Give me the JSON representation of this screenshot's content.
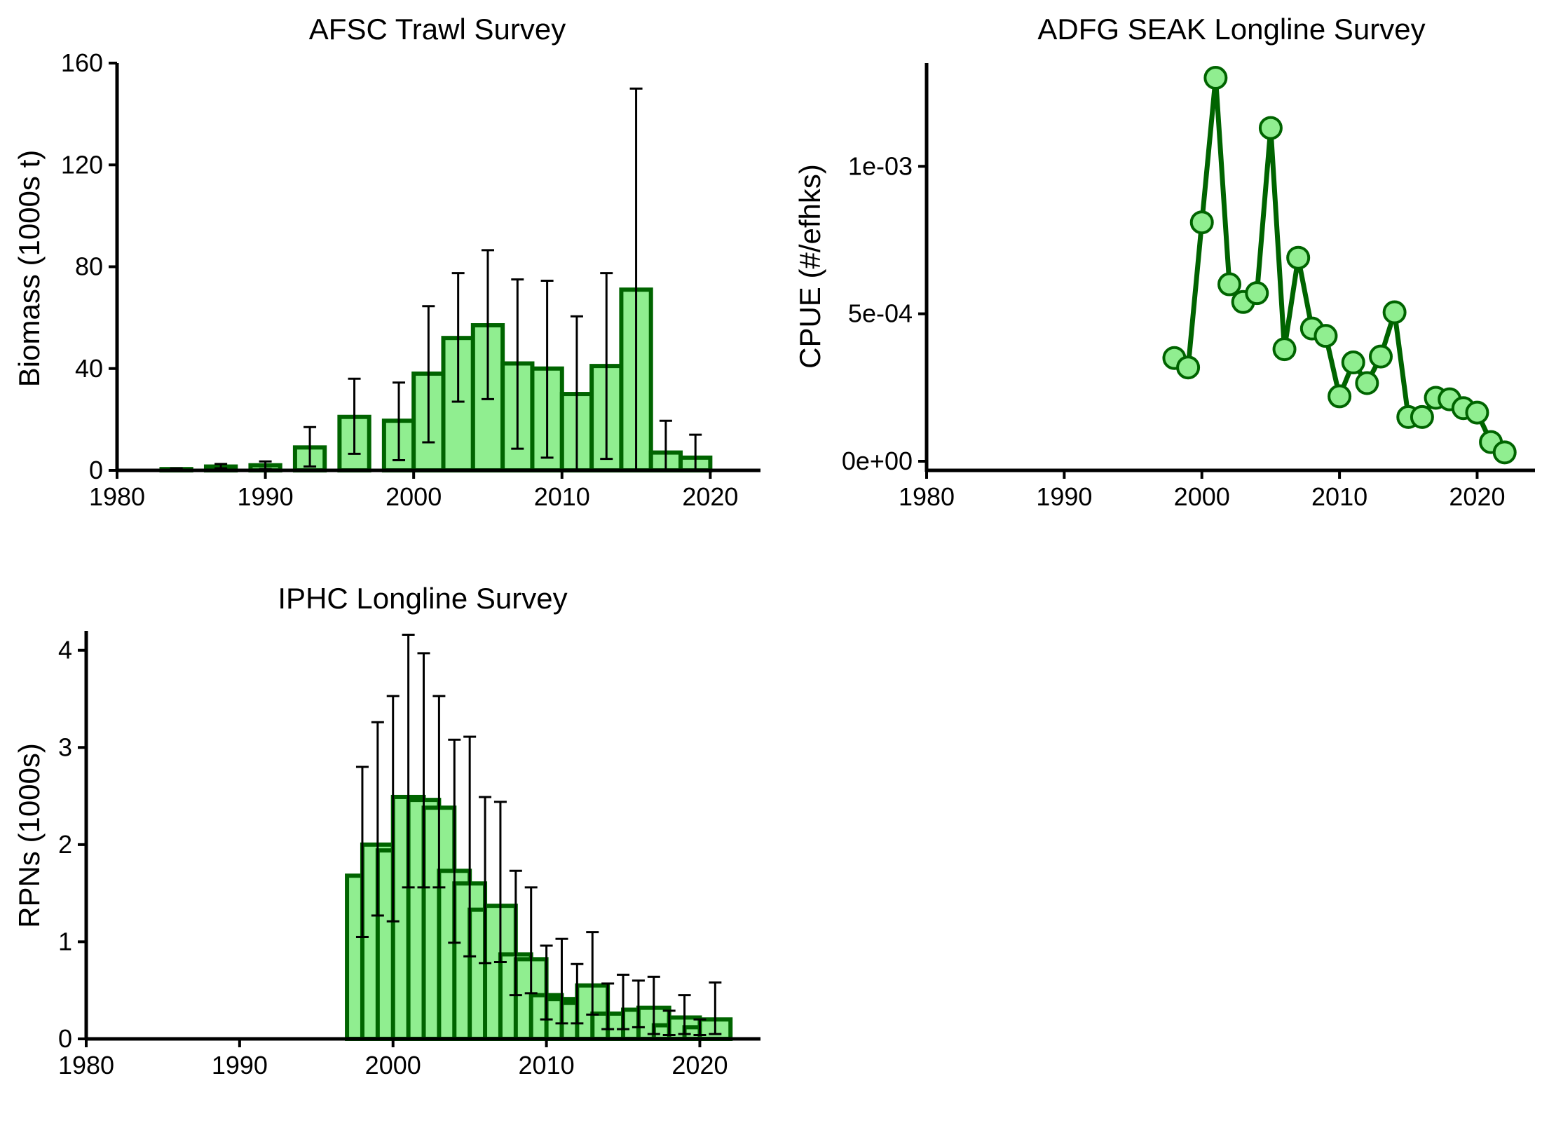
{
  "chart_data": [
    {
      "id": "afsc",
      "type": "bar",
      "title": "AFSC Trawl Survey",
      "xlabel": "",
      "ylabel": "Biomass (1000s t)",
      "xlim": [
        1980,
        2024
      ],
      "ylim": [
        0,
        160
      ],
      "x_ticks": [
        "1980",
        "1990",
        "2000",
        "2010",
        "2020"
      ],
      "y_ticks": [
        "0",
        "40",
        "80",
        "120",
        "160"
      ],
      "bar_width": 2,
      "points": [
        {
          "x": 1984,
          "y": 0.5,
          "lo": 0.2,
          "hi": 0.8
        },
        {
          "x": 1987,
          "y": 1.5,
          "lo": 0.8,
          "hi": 2.5
        },
        {
          "x": 1990,
          "y": 2.0,
          "lo": 0.5,
          "hi": 3.5
        },
        {
          "x": 1993,
          "y": 9.0,
          "lo": 1.5,
          "hi": 17.0
        },
        {
          "x": 1996,
          "y": 21.0,
          "lo": 6.5,
          "hi": 36.0
        },
        {
          "x": 1999,
          "y": 19.5,
          "lo": 4.0,
          "hi": 34.5
        },
        {
          "x": 2001,
          "y": 38.0,
          "lo": 11.0,
          "hi": 64.5
        },
        {
          "x": 2003,
          "y": 52.0,
          "lo": 27.0,
          "hi": 77.5
        },
        {
          "x": 2005,
          "y": 57.0,
          "lo": 28.0,
          "hi": 86.5
        },
        {
          "x": 2007,
          "y": 42.0,
          "lo": 8.5,
          "hi": 75.0
        },
        {
          "x": 2009,
          "y": 40.0,
          "lo": 5.0,
          "hi": 74.5
        },
        {
          "x": 2011,
          "y": 30.0,
          "lo": 0.0,
          "hi": 60.5
        },
        {
          "x": 2013,
          "y": 41.0,
          "lo": 4.5,
          "hi": 77.5
        },
        {
          "x": 2015,
          "y": 71.0,
          "lo": 0.0,
          "hi": 150.0
        },
        {
          "x": 2017,
          "y": 7.0,
          "lo": 0.0,
          "hi": 19.5
        },
        {
          "x": 2019,
          "y": 5.0,
          "lo": 0.0,
          "hi": 14.0
        }
      ]
    },
    {
      "id": "adfg",
      "type": "line",
      "title": "ADFG SEAK Longline Survey",
      "xlabel": "",
      "ylabel": "CPUE (#/efhks)",
      "xlim": [
        1980,
        2024
      ],
      "ylim": [
        0,
        0.00135
      ],
      "x_ticks": [
        "1980",
        "1990",
        "2000",
        "2010",
        "2020"
      ],
      "y_ticks": [
        {
          "value": 0,
          "label": "0e+00"
        },
        {
          "value": 0.0005,
          "label": "5e-04"
        },
        {
          "value": 0.001,
          "label": "1e-03"
        }
      ],
      "points": [
        {
          "x": 1998,
          "y": 0.00035
        },
        {
          "x": 1999,
          "y": 0.000318
        },
        {
          "x": 2000,
          "y": 0.00081
        },
        {
          "x": 2001,
          "y": 0.0013
        },
        {
          "x": 2002,
          "y": 0.0006
        },
        {
          "x": 2003,
          "y": 0.00054
        },
        {
          "x": 2004,
          "y": 0.00057
        },
        {
          "x": 2005,
          "y": 0.00113
        },
        {
          "x": 2006,
          "y": 0.00038
        },
        {
          "x": 2007,
          "y": 0.00069
        },
        {
          "x": 2008,
          "y": 0.00045
        },
        {
          "x": 2009,
          "y": 0.000425
        },
        {
          "x": 2010,
          "y": 0.00022
        },
        {
          "x": 2011,
          "y": 0.000335
        },
        {
          "x": 2012,
          "y": 0.000265
        },
        {
          "x": 2013,
          "y": 0.000355
        },
        {
          "x": 2014,
          "y": 0.000505
        },
        {
          "x": 2015,
          "y": 0.00015
        },
        {
          "x": 2016,
          "y": 0.00015
        },
        {
          "x": 2017,
          "y": 0.000215
        },
        {
          "x": 2018,
          "y": 0.00021
        },
        {
          "x": 2019,
          "y": 0.00018
        },
        {
          "x": 2020,
          "y": 0.000165
        },
        {
          "x": 2021,
          "y": 6.5e-05
        },
        {
          "x": 2022,
          "y": 3e-05
        }
      ]
    },
    {
      "id": "iphc",
      "type": "bar",
      "title": "IPHC Longline Survey",
      "xlabel": "",
      "ylabel": "RPNs (1000s)",
      "xlim": [
        1980,
        2024
      ],
      "ylim": [
        0,
        4.2
      ],
      "x_ticks": [
        "1980",
        "1990",
        "2000",
        "2010",
        "2020"
      ],
      "y_ticks": [
        "0",
        "1",
        "2",
        "3",
        "4"
      ],
      "bar_width": 2,
      "points": [
        {
          "x": 1998,
          "y": 1.68,
          "lo": 1.05,
          "hi": 2.8
        },
        {
          "x": 1999,
          "y": 2.0,
          "lo": 1.27,
          "hi": 3.26
        },
        {
          "x": 2000,
          "y": 1.94,
          "lo": 1.21,
          "hi": 3.53
        },
        {
          "x": 2001,
          "y": 2.49,
          "lo": 1.56,
          "hi": 4.16
        },
        {
          "x": 2002,
          "y": 2.46,
          "lo": 1.56,
          "hi": 3.97
        },
        {
          "x": 2003,
          "y": 2.38,
          "lo": 1.56,
          "hi": 3.53
        },
        {
          "x": 2004,
          "y": 1.73,
          "lo": 0.99,
          "hi": 3.08
        },
        {
          "x": 2005,
          "y": 1.6,
          "lo": 0.85,
          "hi": 3.11
        },
        {
          "x": 2006,
          "y": 1.33,
          "lo": 0.78,
          "hi": 2.49
        },
        {
          "x": 2007,
          "y": 1.37,
          "lo": 0.79,
          "hi": 2.44
        },
        {
          "x": 2008,
          "y": 0.87,
          "lo": 0.45,
          "hi": 1.73
        },
        {
          "x": 2009,
          "y": 0.82,
          "lo": 0.47,
          "hi": 1.56
        },
        {
          "x": 2010,
          "y": 0.45,
          "lo": 0.2,
          "hi": 0.96
        },
        {
          "x": 2011,
          "y": 0.41,
          "lo": 0.16,
          "hi": 1.03
        },
        {
          "x": 2012,
          "y": 0.37,
          "lo": 0.16,
          "hi": 0.77
        },
        {
          "x": 2013,
          "y": 0.55,
          "lo": 0.25,
          "hi": 1.1
        },
        {
          "x": 2014,
          "y": 0.26,
          "lo": 0.1,
          "hi": 0.57
        },
        {
          "x": 2015,
          "y": 0.26,
          "lo": 0.1,
          "hi": 0.66
        },
        {
          "x": 2016,
          "y": 0.3,
          "lo": 0.12,
          "hi": 0.6
        },
        {
          "x": 2017,
          "y": 0.32,
          "lo": 0.05,
          "hi": 0.64
        },
        {
          "x": 2018,
          "y": 0.14,
          "lo": 0.04,
          "hi": 0.29
        },
        {
          "x": 2019,
          "y": 0.22,
          "lo": 0.05,
          "hi": 0.45
        },
        {
          "x": 2020,
          "y": 0.12,
          "lo": 0.04,
          "hi": 0.2
        },
        {
          "x": 2021,
          "y": 0.2,
          "lo": 0.05,
          "hi": 0.58
        }
      ]
    }
  ],
  "colors": {
    "bar_fill": "#90ee90",
    "bar_stroke": "#006400",
    "line": "#006400",
    "point_fill": "#90ee90",
    "point_stroke": "#006400",
    "axis": "#000000",
    "error_bar": "#000000"
  }
}
